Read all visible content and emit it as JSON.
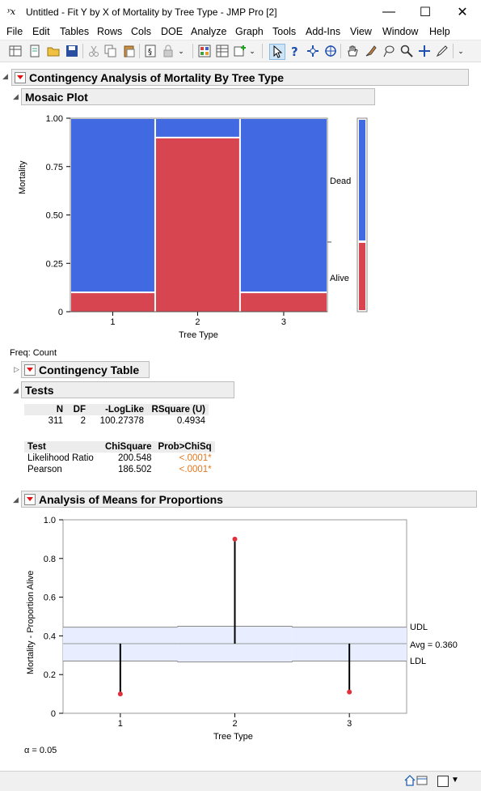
{
  "window": {
    "title": "Untitled - Fit Y by X of Mortality by Tree Type - JMP Pro [2]",
    "app_icon_text": "ʸx",
    "minimize": "—",
    "maximize": "☐",
    "close": "✕"
  },
  "menu": [
    "File",
    "Edit",
    "Tables",
    "Rows",
    "Cols",
    "DOE",
    "Analyze",
    "Graph",
    "Tools",
    "Add-Ins",
    "View",
    "Window",
    "Help"
  ],
  "report": {
    "title": "Contingency Analysis of Mortality By Tree Type",
    "mosaic": {
      "header": "Mosaic Plot",
      "ylabel": "Mortality",
      "xlabel": "Tree Type",
      "yticks": [
        "1.00",
        "0.75",
        "0.50",
        "0.25",
        "0"
      ],
      "xticks": [
        "1",
        "2",
        "3"
      ],
      "legend": [
        "Dead",
        "Alive"
      ],
      "freq_label": "Freq: Count"
    },
    "contingency_header": "Contingency Table",
    "tests": {
      "header": "Tests",
      "summary_headers": [
        "N",
        "DF",
        "-LogLike",
        "RSquare (U)"
      ],
      "summary_values": [
        "311",
        "2",
        "100.27378",
        "0.4934"
      ],
      "test_headers": [
        "Test",
        "ChiSquare",
        "Prob>ChiSq"
      ],
      "rows": [
        {
          "test": "Likelihood Ratio",
          "chisq": "200.548",
          "prob": "<.0001*"
        },
        {
          "test": "Pearson",
          "chisq": "186.502",
          "prob": "<.0001*"
        }
      ]
    },
    "anom": {
      "header": "Analysis of Means for Proportions",
      "ylabel": "Mortality - Proportion Alive",
      "xlabel": "Tree Type",
      "yticks": [
        "1.0",
        "0.8",
        "0.6",
        "0.4",
        "0.2",
        "0"
      ],
      "xticks": [
        "1",
        "2",
        "3"
      ],
      "udl_label": "UDL",
      "avg_label": "Avg = 0.360",
      "ldl_label": "LDL",
      "alpha_label": "α = 0.05"
    }
  },
  "colors": {
    "dead": "#4169e1",
    "alive": "#d64550",
    "band": "#e8eeff"
  },
  "chart_data": [
    {
      "type": "bar",
      "subtype": "mosaic",
      "categories": [
        "1",
        "2",
        "3"
      ],
      "category_widths": [
        0.33,
        0.33,
        0.34
      ],
      "series": [
        {
          "name": "Alive",
          "values": [
            0.1,
            0.9,
            0.1
          ]
        },
        {
          "name": "Dead",
          "values": [
            0.9,
            0.1,
            0.9
          ]
        }
      ],
      "marginal": {
        "Alive": 0.36,
        "Dead": 0.64
      },
      "ylim": [
        0,
        1
      ]
    },
    {
      "type": "scatter",
      "subtype": "anom",
      "categories": [
        "1",
        "2",
        "3"
      ],
      "values": [
        0.1,
        0.9,
        0.11
      ],
      "avg": 0.36,
      "udl": [
        0.445,
        0.45,
        0.445
      ],
      "ldl": [
        0.27,
        0.265,
        0.27
      ],
      "ylim": [
        0,
        1
      ]
    }
  ]
}
